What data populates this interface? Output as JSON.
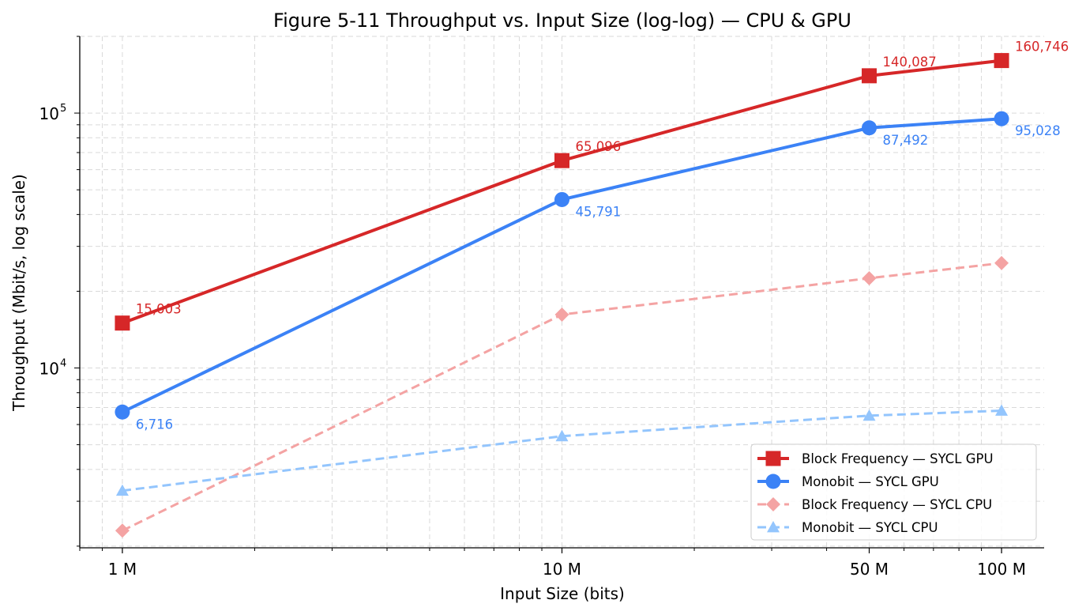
{
  "chart_data": {
    "type": "line",
    "title": "Figure 5-11  Throughput vs. Input Size (log-log) — CPU & GPU",
    "xlabel": "Input Size (bits)",
    "ylabel": "Throughput (Mbit/s, log scale)",
    "x_scale": "log",
    "y_scale": "log",
    "x": [
      1000000,
      10000000,
      50000000,
      100000000
    ],
    "x_tick_labels": [
      "1 M",
      "10 M",
      "50 M",
      "100 M"
    ],
    "y_major_ticks": [
      10000,
      100000
    ],
    "y_major_tick_bases": [
      "10",
      "10"
    ],
    "y_major_tick_exponents": [
      "4",
      "5"
    ],
    "xlim": [
      800000,
      125000000
    ],
    "ylim": [
      1970,
      200000
    ],
    "grid": true,
    "legend_position": "lower-right",
    "series": [
      {
        "name": "Block Frequency — SYCL GPU",
        "values": [
          15003,
          65096,
          140087,
          160746
        ],
        "point_labels": [
          "15,003",
          "65,096",
          "140,087",
          "160,746"
        ],
        "color": "#d62728",
        "marker": "square",
        "style": "solid"
      },
      {
        "name": "Monobit — SYCL GPU",
        "values": [
          6716,
          45791,
          87492,
          95028
        ],
        "point_labels": [
          "6,716",
          "45,791",
          "87,492",
          "95,028"
        ],
        "color": "#3b82f6",
        "marker": "circle",
        "style": "solid"
      },
      {
        "name": "Block Frequency — SYCL CPU",
        "values": [
          2300,
          16200,
          22500,
          25800
        ],
        "color": "#f4a3a3",
        "marker": "diamond",
        "style": "dashed"
      },
      {
        "name": "Monobit — SYCL CPU",
        "values": [
          3300,
          5400,
          6500,
          6800
        ],
        "color": "#93c5fd",
        "marker": "triangle",
        "style": "dashed"
      }
    ]
  }
}
